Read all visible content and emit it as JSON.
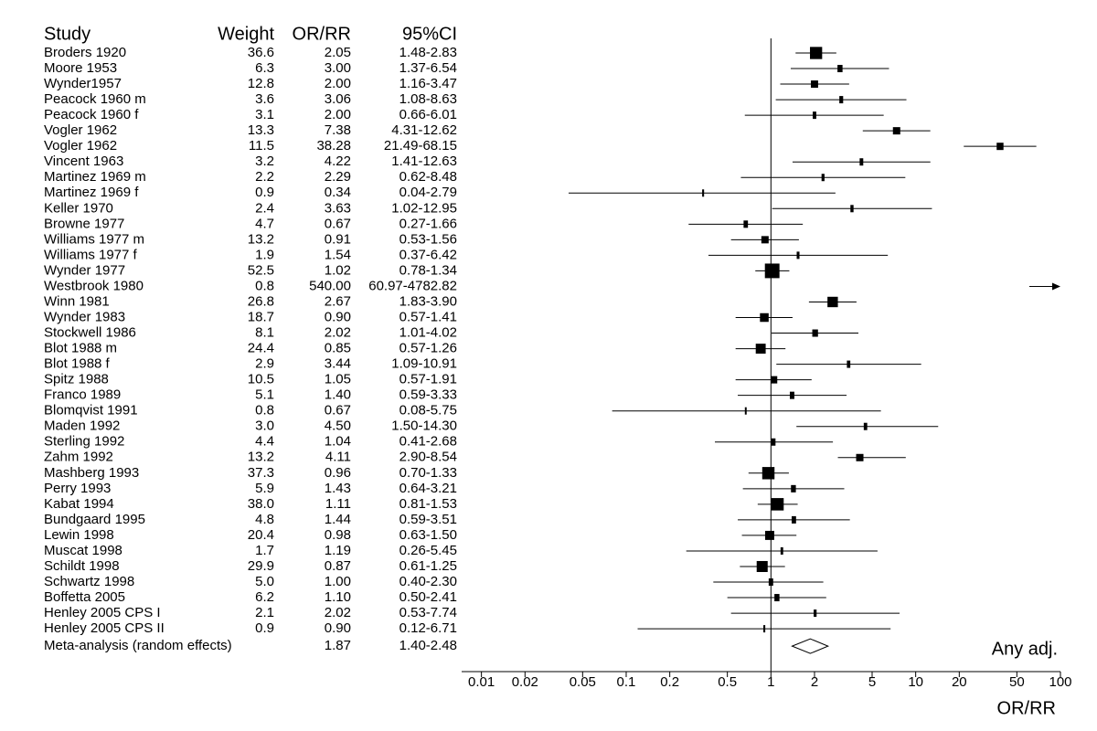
{
  "chart_data": {
    "type": "forest",
    "headers": [
      "Study",
      "Weight",
      "OR/RR",
      "95%CI"
    ],
    "rows": [
      {
        "study": "Broders 1920",
        "weight": 36.6,
        "weight_label": "36.6",
        "value": 2.05,
        "value_label": "2.05",
        "ci": [
          1.48,
          2.83
        ],
        "ci_label": "1.48-2.83"
      },
      {
        "study": "Moore 1953",
        "weight": 6.3,
        "weight_label": "6.3",
        "value": 3.0,
        "value_label": "3.00",
        "ci": [
          1.37,
          6.54
        ],
        "ci_label": "1.37-6.54"
      },
      {
        "study": "Wynder1957",
        "weight": 12.8,
        "weight_label": "12.8",
        "value": 2.0,
        "value_label": "2.00",
        "ci": [
          1.16,
          3.47
        ],
        "ci_label": "1.16-3.47"
      },
      {
        "study": "Peacock 1960 m",
        "weight": 3.6,
        "weight_label": "3.6",
        "value": 3.06,
        "value_label": "3.06",
        "ci": [
          1.08,
          8.63
        ],
        "ci_label": "1.08-8.63"
      },
      {
        "study": "Peacock 1960 f",
        "weight": 3.1,
        "weight_label": "3.1",
        "value": 2.0,
        "value_label": "2.00",
        "ci": [
          0.66,
          6.01
        ],
        "ci_label": "0.66-6.01"
      },
      {
        "study": "Vogler 1962",
        "weight": 13.3,
        "weight_label": "13.3",
        "value": 7.38,
        "value_label": "7.38",
        "ci": [
          4.31,
          12.62
        ],
        "ci_label": "4.31-12.62"
      },
      {
        "study": "Vogler 1962",
        "weight": 11.5,
        "weight_label": "11.5",
        "value": 38.28,
        "value_label": "38.28",
        "ci": [
          21.49,
          68.15
        ],
        "ci_label": "21.49-68.15"
      },
      {
        "study": "Vincent 1963",
        "weight": 3.2,
        "weight_label": "3.2",
        "value": 4.22,
        "value_label": "4.22",
        "ci": [
          1.41,
          12.63
        ],
        "ci_label": "1.41-12.63"
      },
      {
        "study": "Martinez 1969 m",
        "weight": 2.2,
        "weight_label": "2.2",
        "value": 2.29,
        "value_label": "2.29",
        "ci": [
          0.62,
          8.48
        ],
        "ci_label": "0.62-8.48"
      },
      {
        "study": "Martinez 1969 f",
        "weight": 0.9,
        "weight_label": "0.9",
        "value": 0.34,
        "value_label": "0.34",
        "ci": [
          0.04,
          2.79
        ],
        "ci_label": "0.04-2.79"
      },
      {
        "study": "Keller 1970",
        "weight": 2.4,
        "weight_label": "2.4",
        "value": 3.63,
        "value_label": "3.63",
        "ci": [
          1.02,
          12.95
        ],
        "ci_label": "1.02-12.95"
      },
      {
        "study": "Browne 1977",
        "weight": 4.7,
        "weight_label": "4.7",
        "value": 0.67,
        "value_label": "0.67",
        "ci": [
          0.27,
          1.66
        ],
        "ci_label": "0.27-1.66"
      },
      {
        "study": "Williams 1977 m",
        "weight": 13.2,
        "weight_label": "13.2",
        "value": 0.91,
        "value_label": "0.91",
        "ci": [
          0.53,
          1.56
        ],
        "ci_label": "0.53-1.56"
      },
      {
        "study": "Williams 1977 f",
        "weight": 1.9,
        "weight_label": "1.9",
        "value": 1.54,
        "value_label": "1.54",
        "ci": [
          0.37,
          6.42
        ],
        "ci_label": "0.37-6.42"
      },
      {
        "study": "Wynder 1977",
        "weight": 52.5,
        "weight_label": "52.5",
        "value": 1.02,
        "value_label": "1.02",
        "ci": [
          0.78,
          1.34
        ],
        "ci_label": "0.78-1.34"
      },
      {
        "study": "Westbrook 1980",
        "weight": 0.8,
        "weight_label": "0.8",
        "value": 540.0,
        "value_label": "540.00",
        "ci": [
          60.97,
          4782.82
        ],
        "ci_label": "60.97-4782.82"
      },
      {
        "study": "Winn 1981",
        "weight": 26.8,
        "weight_label": "26.8",
        "value": 2.67,
        "value_label": "2.67",
        "ci": [
          1.83,
          3.9
        ],
        "ci_label": "1.83-3.90"
      },
      {
        "study": "Wynder 1983",
        "weight": 18.7,
        "weight_label": "18.7",
        "value": 0.9,
        "value_label": "0.90",
        "ci": [
          0.57,
          1.41
        ],
        "ci_label": "0.57-1.41"
      },
      {
        "study": "Stockwell 1986",
        "weight": 8.1,
        "weight_label": "8.1",
        "value": 2.02,
        "value_label": "2.02",
        "ci": [
          1.01,
          4.02
        ],
        "ci_label": "1.01-4.02"
      },
      {
        "study": "Blot 1988 m",
        "weight": 24.4,
        "weight_label": "24.4",
        "value": 0.85,
        "value_label": "0.85",
        "ci": [
          0.57,
          1.26
        ],
        "ci_label": "0.57-1.26"
      },
      {
        "study": "Blot 1988 f",
        "weight": 2.9,
        "weight_label": "2.9",
        "value": 3.44,
        "value_label": "3.44",
        "ci": [
          1.09,
          10.91
        ],
        "ci_label": "1.09-10.91"
      },
      {
        "study": "Spitz 1988",
        "weight": 10.5,
        "weight_label": "10.5",
        "value": 1.05,
        "value_label": "1.05",
        "ci": [
          0.57,
          1.91
        ],
        "ci_label": "0.57-1.91"
      },
      {
        "study": "Franco 1989",
        "weight": 5.1,
        "weight_label": "5.1",
        "value": 1.4,
        "value_label": "1.40",
        "ci": [
          0.59,
          3.33
        ],
        "ci_label": "0.59-3.33"
      },
      {
        "study": "Blomqvist 1991",
        "weight": 0.8,
        "weight_label": "0.8",
        "value": 0.67,
        "value_label": "0.67",
        "ci": [
          0.08,
          5.75
        ],
        "ci_label": "0.08-5.75"
      },
      {
        "study": "Maden 1992",
        "weight": 3.0,
        "weight_label": "3.0",
        "value": 4.5,
        "value_label": "4.50",
        "ci": [
          1.5,
          14.3
        ],
        "ci_label": "1.50-14.30"
      },
      {
        "study": "Sterling 1992",
        "weight": 4.4,
        "weight_label": "4.4",
        "value": 1.04,
        "value_label": "1.04",
        "ci": [
          0.41,
          2.68
        ],
        "ci_label": "0.41-2.68"
      },
      {
        "study": "Zahm 1992",
        "weight": 13.2,
        "weight_label": "13.2",
        "value": 4.11,
        "value_label": "4.11",
        "ci": [
          2.9,
          8.54
        ],
        "ci_label": "2.90-8.54"
      },
      {
        "study": "Mashberg 1993",
        "weight": 37.3,
        "weight_label": "37.3",
        "value": 0.96,
        "value_label": "0.96",
        "ci": [
          0.7,
          1.33
        ],
        "ci_label": "0.70-1.33"
      },
      {
        "study": "Perry 1993",
        "weight": 5.9,
        "weight_label": "5.9",
        "value": 1.43,
        "value_label": "1.43",
        "ci": [
          0.64,
          3.21
        ],
        "ci_label": "0.64-3.21"
      },
      {
        "study": "Kabat 1994",
        "weight": 38.0,
        "weight_label": "38.0",
        "value": 1.11,
        "value_label": "1.11",
        "ci": [
          0.81,
          1.53
        ],
        "ci_label": "0.81-1.53"
      },
      {
        "study": "Bundgaard 1995",
        "weight": 4.8,
        "weight_label": "4.8",
        "value": 1.44,
        "value_label": "1.44",
        "ci": [
          0.59,
          3.51
        ],
        "ci_label": "0.59-3.51"
      },
      {
        "study": "Lewin 1998",
        "weight": 20.4,
        "weight_label": "20.4",
        "value": 0.98,
        "value_label": "0.98",
        "ci": [
          0.63,
          1.5
        ],
        "ci_label": "0.63-1.50"
      },
      {
        "study": "Muscat 1998",
        "weight": 1.7,
        "weight_label": "1.7",
        "value": 1.19,
        "value_label": "1.19",
        "ci": [
          0.26,
          5.45
        ],
        "ci_label": "0.26-5.45"
      },
      {
        "study": "Schildt 1998",
        "weight": 29.9,
        "weight_label": "29.9",
        "value": 0.87,
        "value_label": "0.87",
        "ci": [
          0.61,
          1.25
        ],
        "ci_label": "0.61-1.25"
      },
      {
        "study": "Schwartz 1998",
        "weight": 5.0,
        "weight_label": "5.0",
        "value": 1.0,
        "value_label": "1.00",
        "ci": [
          0.4,
          2.3
        ],
        "ci_label": "0.40-2.30"
      },
      {
        "study": "Boffetta 2005",
        "weight": 6.2,
        "weight_label": "6.2",
        "value": 1.1,
        "value_label": "1.10",
        "ci": [
          0.5,
          2.41
        ],
        "ci_label": "0.50-2.41"
      },
      {
        "study": "Henley 2005 CPS I",
        "weight": 2.1,
        "weight_label": "2.1",
        "value": 2.02,
        "value_label": "2.02",
        "ci": [
          0.53,
          7.74
        ],
        "ci_label": "0.53-7.74"
      },
      {
        "study": "Henley 2005 CPS II",
        "weight": 0.9,
        "weight_label": "0.9",
        "value": 0.9,
        "value_label": "0.90",
        "ci": [
          0.12,
          6.71
        ],
        "ci_label": "0.12-6.71"
      }
    ],
    "summary": {
      "study": "Meta-analysis (random effects)",
      "value": 1.87,
      "value_label": "1.87",
      "ci": [
        1.4,
        2.48
      ],
      "ci_label": "1.40-2.48"
    },
    "annotation": "Any adj.",
    "xlabel": "OR/RR",
    "log_x": true,
    "xlim": [
      0.0073,
      100
    ],
    "xticks": [
      0.01,
      0.02,
      0.05,
      0.1,
      0.2,
      0.5,
      1,
      2,
      5,
      10,
      20,
      50,
      100
    ],
    "ref_line": 1,
    "color": "#000000"
  }
}
